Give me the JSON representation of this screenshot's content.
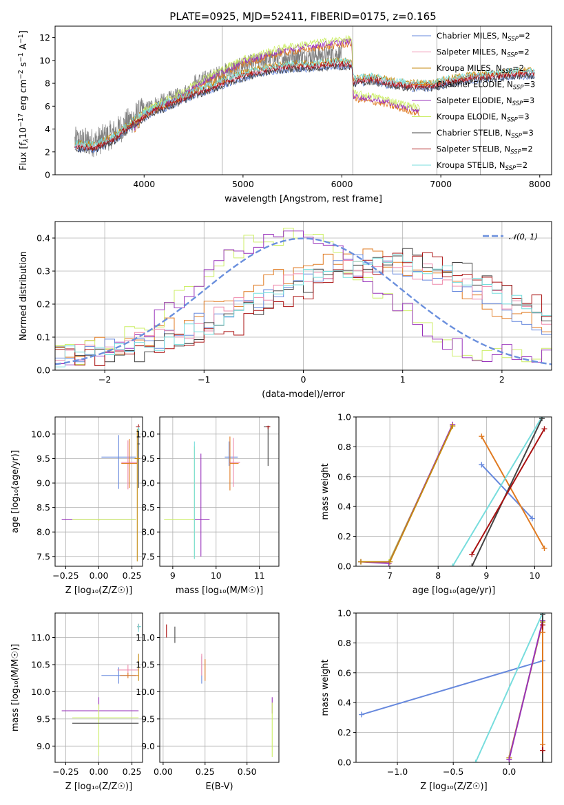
{
  "figure": {
    "title": "PLATE=0925, MJD=52411, FIBERID=0175, z=0.165"
  },
  "model_legend": [
    {
      "label": "Chabrier MILES, N",
      "sub": "SSP",
      "suffix": "=2",
      "color": "#6688dd"
    },
    {
      "label": "Salpeter MILES, N",
      "sub": "SSP",
      "suffix": "=2",
      "color": "#ee88aa"
    },
    {
      "label": "Kroupa MILES, N",
      "sub": "SSP",
      "suffix": "=2",
      "color": "#c48a10"
    },
    {
      "label": "Chabrier ELODIE, N",
      "sub": "SSP",
      "suffix": "=3",
      "color": "#e07a20"
    },
    {
      "label": "Salpeter ELODIE, N",
      "sub": "SSP",
      "suffix": "=3",
      "color": "#9933bb"
    },
    {
      "label": "Kroupa ELODIE, N",
      "sub": "SSP",
      "suffix": "=3",
      "color": "#ccee66"
    },
    {
      "label": "Chabrier STELIB, N",
      "sub": "SSP",
      "suffix": "=3",
      "color": "#444444"
    },
    {
      "label": "Salpeter STELIB, N",
      "sub": "SSP",
      "suffix": "=2",
      "color": "#aa1111"
    },
    {
      "label": "Kroupa STELIB, N",
      "sub": "SSP",
      "suffix": "=2",
      "color": "#77dddd"
    }
  ],
  "chart_data": [
    {
      "id": "spectrum",
      "type": "line",
      "xlabel": "wavelength [Angstrom, rest frame]",
      "ylabel_parts": [
        "Flux [f",
        "λ",
        "10",
        "−17",
        " erg cm",
        "−2",
        " s",
        "−1",
        " A",
        "−1",
        "]"
      ],
      "xlim": [
        3100,
        8120
      ],
      "ylim": [
        0,
        13
      ],
      "xticks": [
        4000,
        5000,
        6000,
        7000,
        8000
      ],
      "yticks": [
        0,
        2,
        4,
        6,
        8,
        10,
        12
      ],
      "grid": false,
      "legend_position": "upper-right",
      "data_color": "#808080",
      "model_knots_x": [
        3300,
        3500,
        3700,
        3900,
        4100,
        4300,
        4500,
        4700,
        4900,
        5100,
        5300,
        5500,
        5700,
        5900,
        6100,
        6115,
        6300,
        6500,
        6700,
        6900,
        7100,
        7300,
        7500,
        7700,
        7900
      ],
      "model_knots_y": [
        2.5,
        2.4,
        3.2,
        4.6,
        5.7,
        6.3,
        7.1,
        7.7,
        8.4,
        8.9,
        9.3,
        9.5,
        9.5,
        9.7,
        9.7,
        8.2,
        8.4,
        8.0,
        7.8,
        7.8,
        8.2,
        8.5,
        8.6,
        8.8,
        8.9
      ],
      "elodie_knots_x": [
        3900,
        4000,
        4300,
        4600,
        5000,
        5400,
        5800,
        6100,
        6115,
        6400,
        6600,
        6790
      ],
      "elodie_knots_y": [
        4.0,
        5.4,
        6.6,
        8.2,
        9.9,
        10.9,
        11.4,
        11.7,
        6.9,
        6.5,
        6.0,
        5.6
      ],
      "elodie_extent": [
        3900,
        6790
      ]
    },
    {
      "id": "residuals",
      "type": "line",
      "xlabel": "(data-model)/error",
      "ylabel": "Normed distribution",
      "xlim": [
        -2.5,
        2.5
      ],
      "ylim": [
        0,
        0.45
      ],
      "xticks": [
        -2,
        -1,
        0,
        1,
        2
      ],
      "yticks": [
        0.0,
        0.1,
        0.2,
        0.3,
        0.4
      ],
      "grid": true,
      "legend_position": "upper-right",
      "normal_label": "𝒩(0, 1)",
      "normal_color": "#6a8fdd",
      "bin_width": 0.1,
      "series": [
        {
          "model": "Chabrier ELODIE",
          "color": "#e07a20",
          "center": 0.55,
          "width": 1.25,
          "peak": 0.31,
          "floor": 0.03
        },
        {
          "model": "Kroupa ELODIE",
          "color": "#ccee66",
          "center": -0.2,
          "width": 0.85,
          "peak": 0.38,
          "floor": 0.03
        },
        {
          "model": "Salpeter ELODIE",
          "color": "#9933bb",
          "center": -0.15,
          "width": 0.85,
          "peak": 0.39,
          "floor": 0.03
        },
        {
          "model": "Chabrier MILES",
          "color": "#6688dd",
          "center": 0.7,
          "width": 1.25,
          "peak": 0.29,
          "floor": 0.03
        },
        {
          "model": "Salpeter MILES",
          "color": "#ee88aa",
          "center": 0.75,
          "width": 1.3,
          "peak": 0.29,
          "floor": 0.03
        },
        {
          "model": "Chabrier STELIB",
          "color": "#444444",
          "center": 0.95,
          "width": 1.2,
          "peak": 0.31,
          "floor": 0.03
        },
        {
          "model": "Salpeter STELIB",
          "color": "#aa1111",
          "center": 1.05,
          "width": 1.2,
          "peak": 0.3,
          "floor": 0.03
        },
        {
          "model": "Kroupa STELIB",
          "color": "#77dddd",
          "center": 0.85,
          "width": 1.25,
          "peak": 0.3,
          "floor": 0.03
        }
      ]
    },
    {
      "id": "age_vs_Z",
      "type": "scatter",
      "xlabel": "Z [log₁₀(Z/Z☉)]",
      "ylabel": "age  [log₁₀(age/yr)]",
      "xlim": [
        -0.33,
        0.33
      ],
      "ylim": [
        7.3,
        10.35
      ],
      "xticks": [
        -0.25,
        0.0,
        0.25
      ],
      "xtick_labels": [
        "−0.25",
        "0.00",
        "0.25"
      ],
      "yticks": [
        7.5,
        8.0,
        8.5,
        9.0,
        9.5,
        10.0
      ],
      "grid": true,
      "errorbars": [
        {
          "color": "#6688dd",
          "x": 0.15,
          "xerr": [
            0.13,
            0.13
          ],
          "y": 9.53,
          "yerr": [
            0.65,
            0.45
          ]
        },
        {
          "color": "#ee88aa",
          "x": 0.22,
          "xerr": [
            0.05,
            0.07
          ],
          "y": 9.42,
          "yerr": [
            0.55,
            0.45
          ]
        },
        {
          "color": "#e07a20",
          "x": 0.23,
          "xerr": [
            0.06,
            0.06
          ],
          "y": 9.4,
          "yerr": [
            0.5,
            0.5
          ]
        },
        {
          "color": "#9933bb",
          "x": 0.0,
          "xerr": [
            0.28,
            0.28
          ],
          "y": 8.25,
          "yerr": [
            0.02,
            0.02
          ]
        },
        {
          "color": "#ccee66",
          "x": 0.0,
          "xerr": [
            0.2,
            0.28
          ],
          "y": 8.25,
          "yerr": [
            0.02,
            0.02
          ]
        },
        {
          "color": "#444444",
          "x": 0.3,
          "xerr": [
            0.01,
            0.01
          ],
          "y": 9.8,
          "yerr": [
            0.9,
            0.3
          ]
        },
        {
          "color": "#aa1111",
          "x": 0.3,
          "xerr": [
            0.02,
            0.01
          ],
          "y": 10.15,
          "yerr": [
            0.05,
            0.05
          ]
        },
        {
          "color": "#77dddd",
          "x": 0.3,
          "xerr": [
            0.01,
            0.01
          ],
          "y": 10.1,
          "yerr": [
            0.05,
            0.05
          ]
        },
        {
          "color": "#c48a10",
          "x": 0.29,
          "xerr": [
            0.02,
            0.02
          ],
          "y": 9.5,
          "yerr": [
            2.1,
            0.6
          ]
        }
      ]
    },
    {
      "id": "age_vs_mass",
      "type": "scatter",
      "xlabel": "mass [log₁₀(M/M☉)]",
      "ylabel": "",
      "xlim": [
        8.7,
        11.45
      ],
      "ylim": [
        7.3,
        10.35
      ],
      "xticks": [
        9,
        10,
        11
      ],
      "xtick_labels": [
        "9",
        "10",
        "11"
      ],
      "yticks": [
        7.5,
        8.0,
        8.5,
        9.0,
        9.5,
        10.0
      ],
      "grid": true,
      "errorbars": [
        {
          "color": "#6688dd",
          "x": 10.3,
          "xerr": [
            0.0,
            0.0
          ],
          "y": 9.55,
          "yerr": [
            0.2,
            0.3
          ]
        },
        {
          "color": "#6688dd",
          "x": 10.35,
          "xerr": [
            0.15,
            0.15
          ],
          "y": 9.53,
          "yerr": [
            0.0,
            0.0
          ]
        },
        {
          "color": "#ee88aa",
          "x": 10.4,
          "xerr": [
            0.1,
            0.15
          ],
          "y": 9.42,
          "yerr": [
            0.5,
            0.5
          ]
        },
        {
          "color": "#e07a20",
          "x": 10.32,
          "xerr": [
            0.0,
            0.2
          ],
          "y": 9.4,
          "yerr": [
            0.55,
            0.55
          ]
        },
        {
          "color": "#9933bb",
          "x": 9.65,
          "xerr": [
            0.2,
            0.2
          ],
          "y": 8.25,
          "yerr": [
            0.75,
            1.35
          ]
        },
        {
          "color": "#ccee66",
          "x": 9.5,
          "xerr": [
            0.7,
            0.0
          ],
          "y": 8.25,
          "yerr": [
            0.8,
            1.5
          ]
        },
        {
          "color": "#444444",
          "x": 11.2,
          "xerr": [
            0.1,
            0.05
          ],
          "y": 10.15,
          "yerr": [
            0.8,
            0.02
          ]
        },
        {
          "color": "#aa1111",
          "x": 11.2,
          "xerr": [
            0.05,
            0.05
          ],
          "y": 10.15,
          "yerr": [
            0.05,
            0.02
          ]
        },
        {
          "color": "#77dddd",
          "x": 9.5,
          "xerr": [
            0.0,
            0.0
          ],
          "y": 8.25,
          "yerr": [
            0.8,
            1.6
          ]
        }
      ]
    },
    {
      "id": "mass_weight_vs_age",
      "type": "line",
      "xlabel": "age  [log₁₀(age/yr)]",
      "ylabel": "mass weight",
      "xlim": [
        6.3,
        10.35
      ],
      "ylim": [
        0,
        1
      ],
      "xticks": [
        7,
        8,
        9,
        10
      ],
      "yticks": [
        0.0,
        0.2,
        0.4,
        0.6,
        0.8,
        1.0
      ],
      "grid": true,
      "series": [
        {
          "color": "#ccee66",
          "x": [
            6.4,
            6.98,
            8.3
          ],
          "y": [
            0.03,
            0.03,
            0.94
          ]
        },
        {
          "color": "#9933bb",
          "x": [
            6.4,
            6.98,
            8.3
          ],
          "y": [
            0.03,
            0.02,
            0.95
          ]
        },
        {
          "color": "#c48a10",
          "x": [
            6.4,
            7.0,
            8.3
          ],
          "y": [
            0.03,
            0.03,
            0.94
          ]
        },
        {
          "color": "#6688dd",
          "x": [
            8.9,
            9.95
          ],
          "y": [
            0.68,
            0.32
          ]
        },
        {
          "color": "#e07a20",
          "x": [
            8.9,
            10.2
          ],
          "y": [
            0.87,
            0.12
          ]
        },
        {
          "color": "#77dddd",
          "x": [
            8.3,
            10.15
          ],
          "y": [
            0.0,
            1.0
          ]
        },
        {
          "color": "#444444",
          "x": [
            8.7,
            10.15
          ],
          "y": [
            0.0,
            0.99
          ]
        },
        {
          "color": "#aa1111",
          "x": [
            8.7,
            10.2
          ],
          "y": [
            0.08,
            0.92
          ]
        }
      ]
    },
    {
      "id": "mass_vs_Z",
      "type": "scatter",
      "xlabel": "Z [log₁₀(Z/Z☉)]",
      "ylabel": "mass [log₁₀(M/M☉)]",
      "xlim": [
        -0.33,
        0.33
      ],
      "ylim": [
        8.7,
        11.45
      ],
      "xticks": [
        -0.25,
        0.0,
        0.25
      ],
      "xtick_labels": [
        "−0.25",
        "0.00",
        "0.25"
      ],
      "yticks": [
        9.0,
        9.5,
        10.0,
        10.5,
        11.0
      ],
      "grid": true,
      "errorbars": [
        {
          "color": "#6688dd",
          "x": 0.15,
          "xerr": [
            0.13,
            0.13
          ],
          "y": 10.3,
          "yerr": [
            0.15,
            0.15
          ]
        },
        {
          "color": "#ee88aa",
          "x": 0.22,
          "xerr": [
            0.08,
            0.08
          ],
          "y": 10.4,
          "yerr": [
            0.1,
            0.1
          ]
        },
        {
          "color": "#e07a20",
          "x": 0.22,
          "xerr": [
            0.06,
            0.08
          ],
          "y": 10.3,
          "yerr": [
            0.05,
            0.05
          ]
        },
        {
          "color": "#9933bb",
          "x": 0.0,
          "xerr": [
            0.28,
            0.3
          ],
          "y": 9.65,
          "yerr": [
            0.2,
            0.25
          ]
        },
        {
          "color": "#ccee66",
          "x": 0.0,
          "xerr": [
            0.2,
            0.3
          ],
          "y": 9.52,
          "yerr": [
            0.7,
            0.25
          ]
        },
        {
          "color": "#444444",
          "x": 0.0,
          "xerr": [
            0.2,
            0.3
          ],
          "y": 9.42,
          "yerr": [
            0.0,
            0.0
          ]
        },
        {
          "color": "#aa1111",
          "x": 0.3,
          "xerr": [
            0.01,
            0.01
          ],
          "y": 11.2,
          "yerr": [
            0.05,
            0.05
          ]
        },
        {
          "color": "#77dddd",
          "x": 0.3,
          "xerr": [
            0.01,
            0.02
          ],
          "y": 11.2,
          "yerr": [
            0.1,
            0.05
          ]
        },
        {
          "color": "#c48a10",
          "x": 0.3,
          "xerr": [
            0.0,
            0.0
          ],
          "y": 10.35,
          "yerr": [
            0.15,
            0.35
          ]
        }
      ]
    },
    {
      "id": "mass_vs_ebv",
      "type": "scatter",
      "xlabel": "E(B-V)",
      "ylabel": "",
      "xlim": [
        -0.02,
        0.69
      ],
      "ylim": [
        8.7,
        11.45
      ],
      "xticks": [
        0.0,
        0.25,
        0.5
      ],
      "xtick_labels": [
        "0.00",
        "0.25",
        "0.50"
      ],
      "yticks": [
        9.0,
        9.5,
        10.0,
        10.5,
        11.0
      ],
      "grid": true,
      "errorbars": [
        {
          "color": "#aa1111",
          "x": 0.02,
          "xerr": [
            0.0,
            0.0
          ],
          "y": 11.12,
          "yerr": [
            0.12,
            0.12
          ]
        },
        {
          "color": "#444444",
          "x": 0.07,
          "xerr": [
            0.0,
            0.0
          ],
          "y": 11.05,
          "yerr": [
            0.15,
            0.15
          ]
        },
        {
          "color": "#6688dd",
          "x": 0.23,
          "xerr": [
            0.0,
            0.0
          ],
          "y": 10.4,
          "yerr": [
            0.25,
            0.25
          ]
        },
        {
          "color": "#ee88aa",
          "x": 0.23,
          "xerr": [
            0.0,
            0.0
          ],
          "y": 10.5,
          "yerr": [
            0.2,
            0.2
          ]
        },
        {
          "color": "#e07a20",
          "x": 0.25,
          "xerr": [
            0.0,
            0.0
          ],
          "y": 10.4,
          "yerr": [
            0.2,
            0.2
          ]
        },
        {
          "color": "#9933bb",
          "x": 0.65,
          "xerr": [
            0.0,
            0.0
          ],
          "y": 9.75,
          "yerr": [
            0.15,
            0.15
          ]
        },
        {
          "color": "#ccee66",
          "x": 0.65,
          "xerr": [
            0.0,
            0.0
          ],
          "y": 9.3,
          "yerr": [
            0.5,
            0.5
          ]
        }
      ]
    },
    {
      "id": "mass_weight_vs_Z",
      "type": "line",
      "xlabel": "Z [log₁₀(Z/Z☉)]",
      "ylabel": "mass weight",
      "xlim": [
        -1.37,
        0.38
      ],
      "ylim": [
        0,
        1
      ],
      "xticks": [
        -1.0,
        -0.5,
        0.0
      ],
      "xtick_labels": [
        "−1.0",
        "−0.5",
        "0.0"
      ],
      "yticks": [
        0.0,
        0.2,
        0.4,
        0.6,
        0.8,
        1.0
      ],
      "grid": true,
      "series": [
        {
          "color": "#6688dd",
          "x": [
            -1.32,
            0.3
          ],
          "y": [
            0.32,
            0.68
          ]
        },
        {
          "color": "#77dddd",
          "x": [
            -0.3,
            0.3
          ],
          "y": [
            0.0,
            1.0
          ]
        },
        {
          "color": "#ccee66",
          "x": [
            0.0,
            0.3
          ],
          "y": [
            0.03,
            0.94
          ]
        },
        {
          "color": "#c48a10",
          "x": [
            0.0,
            0.3
          ],
          "y": [
            0.03,
            0.94
          ]
        },
        {
          "color": "#9933bb",
          "x": [
            0.0,
            0.3
          ],
          "y": [
            0.02,
            0.95
          ]
        },
        {
          "color": "#444444",
          "x": [
            0.3,
            0.3
          ],
          "y": [
            0.0,
            0.99
          ]
        },
        {
          "color": "#aa1111",
          "x": [
            0.3,
            0.3
          ],
          "y": [
            0.08,
            0.92
          ]
        },
        {
          "color": "#e07a20",
          "x": [
            0.3,
            0.3
          ],
          "y": [
            0.12,
            0.87
          ]
        }
      ]
    }
  ]
}
